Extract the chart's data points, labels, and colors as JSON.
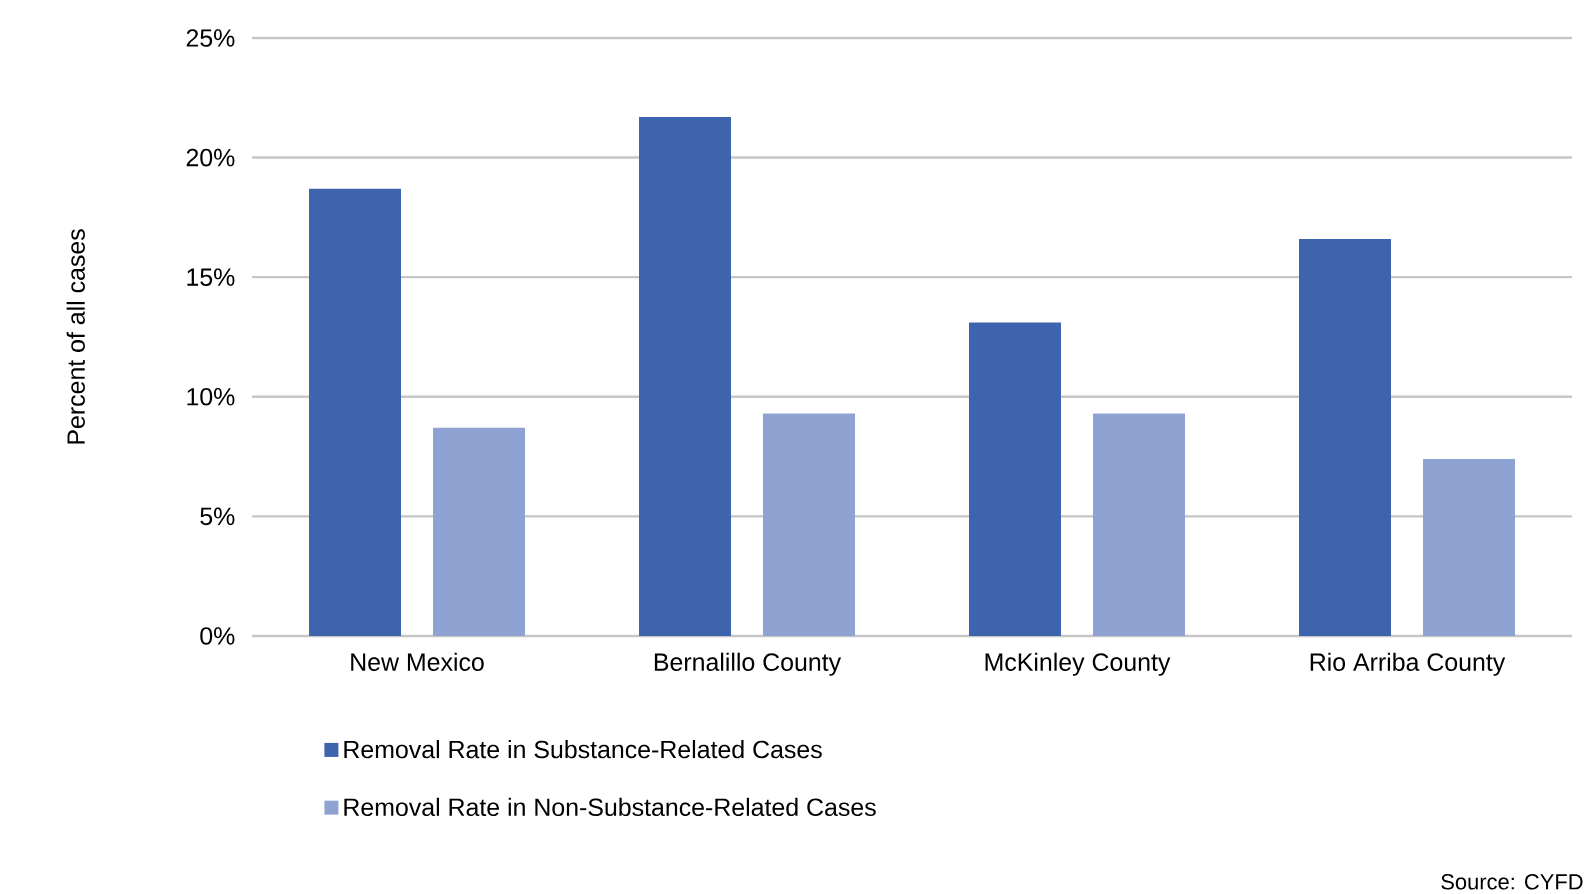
{
  "chart_data": {
    "type": "bar",
    "ylabel": "Percent of all cases",
    "categories": [
      "New Mexico",
      "Bernalillo County",
      "McKinley County",
      "Rio Arriba County"
    ],
    "series": [
      {
        "name": "Removal Rate in Substance-Related Cases",
        "color": "#3d64ac",
        "values": [
          18.7,
          21.7,
          13.1,
          16.6
        ]
      },
      {
        "name": "Removal Rate in Non-Substance-Related Cases",
        "color": "#8fa3d3",
        "values": [
          8.7,
          9.3,
          9.3,
          7.4
        ]
      }
    ],
    "ylim": [
      0,
      25
    ],
    "yticks": [
      {
        "value": 0,
        "label": "0%"
      },
      {
        "value": 5,
        "label": "5%"
      },
      {
        "value": 10,
        "label": "10%"
      },
      {
        "value": 15,
        "label": "15%"
      },
      {
        "value": 20,
        "label": "20%"
      },
      {
        "value": 25,
        "label": "25%"
      }
    ],
    "grid": "y",
    "legend": "bottom",
    "annotations": [
      "Source: CYFD"
    ]
  }
}
